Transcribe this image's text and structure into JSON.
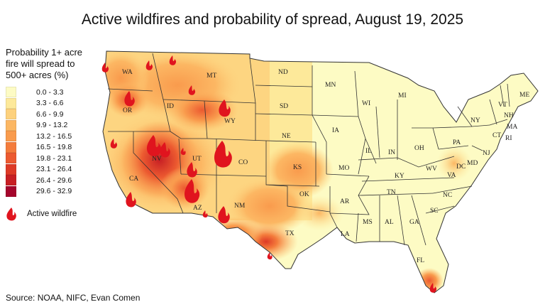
{
  "title": "Active wildfires and probability of spread, August 19, 2025",
  "legend": {
    "title_lines": [
      "Probability 1+ acre",
      "fire will spread to",
      "500+ acres (%)"
    ],
    "bins": [
      {
        "label": "0.0 - 3.3",
        "color": "#fdfbc4"
      },
      {
        "label": "3.3 - 6.6",
        "color": "#fde99a"
      },
      {
        "label": "6.6 - 9.9",
        "color": "#fdd17d"
      },
      {
        "label": "9.9 - 13.2",
        "color": "#fcb763"
      },
      {
        "label": "13.2 - 16.5",
        "color": "#f99b4d"
      },
      {
        "label": "16.5 - 19.8",
        "color": "#f47c3c"
      },
      {
        "label": "19.8 - 23.1",
        "color": "#ec5a30"
      },
      {
        "label": "23.1 - 26.4",
        "color": "#dd3a26"
      },
      {
        "label": "26.4 - 29.6",
        "color": "#c71f24"
      },
      {
        "label": "29.6 - 32.9",
        "color": "#a5052c"
      }
    ],
    "fire_label": "Active wildfire",
    "fire_icon": "flame-icon"
  },
  "states": [
    "WA",
    "OR",
    "CA",
    "ID",
    "NV",
    "MT",
    "WY",
    "UT",
    "AZ",
    "CO",
    "NM",
    "ND",
    "SD",
    "NE",
    "KS",
    "OK",
    "TX",
    "MN",
    "IA",
    "MO",
    "AR",
    "LA",
    "WI",
    "IL",
    "MI",
    "IN",
    "OH",
    "KY",
    "TN",
    "MS",
    "AL",
    "GA",
    "FL",
    "SC",
    "NC",
    "VA",
    "WV",
    "PA",
    "NY",
    "ME",
    "VT",
    "NH",
    "MA",
    "CT",
    "RI",
    "NJ",
    "MD",
    "DC"
  ],
  "source": "Source: NOAA, NIFC, Evan Comen"
}
